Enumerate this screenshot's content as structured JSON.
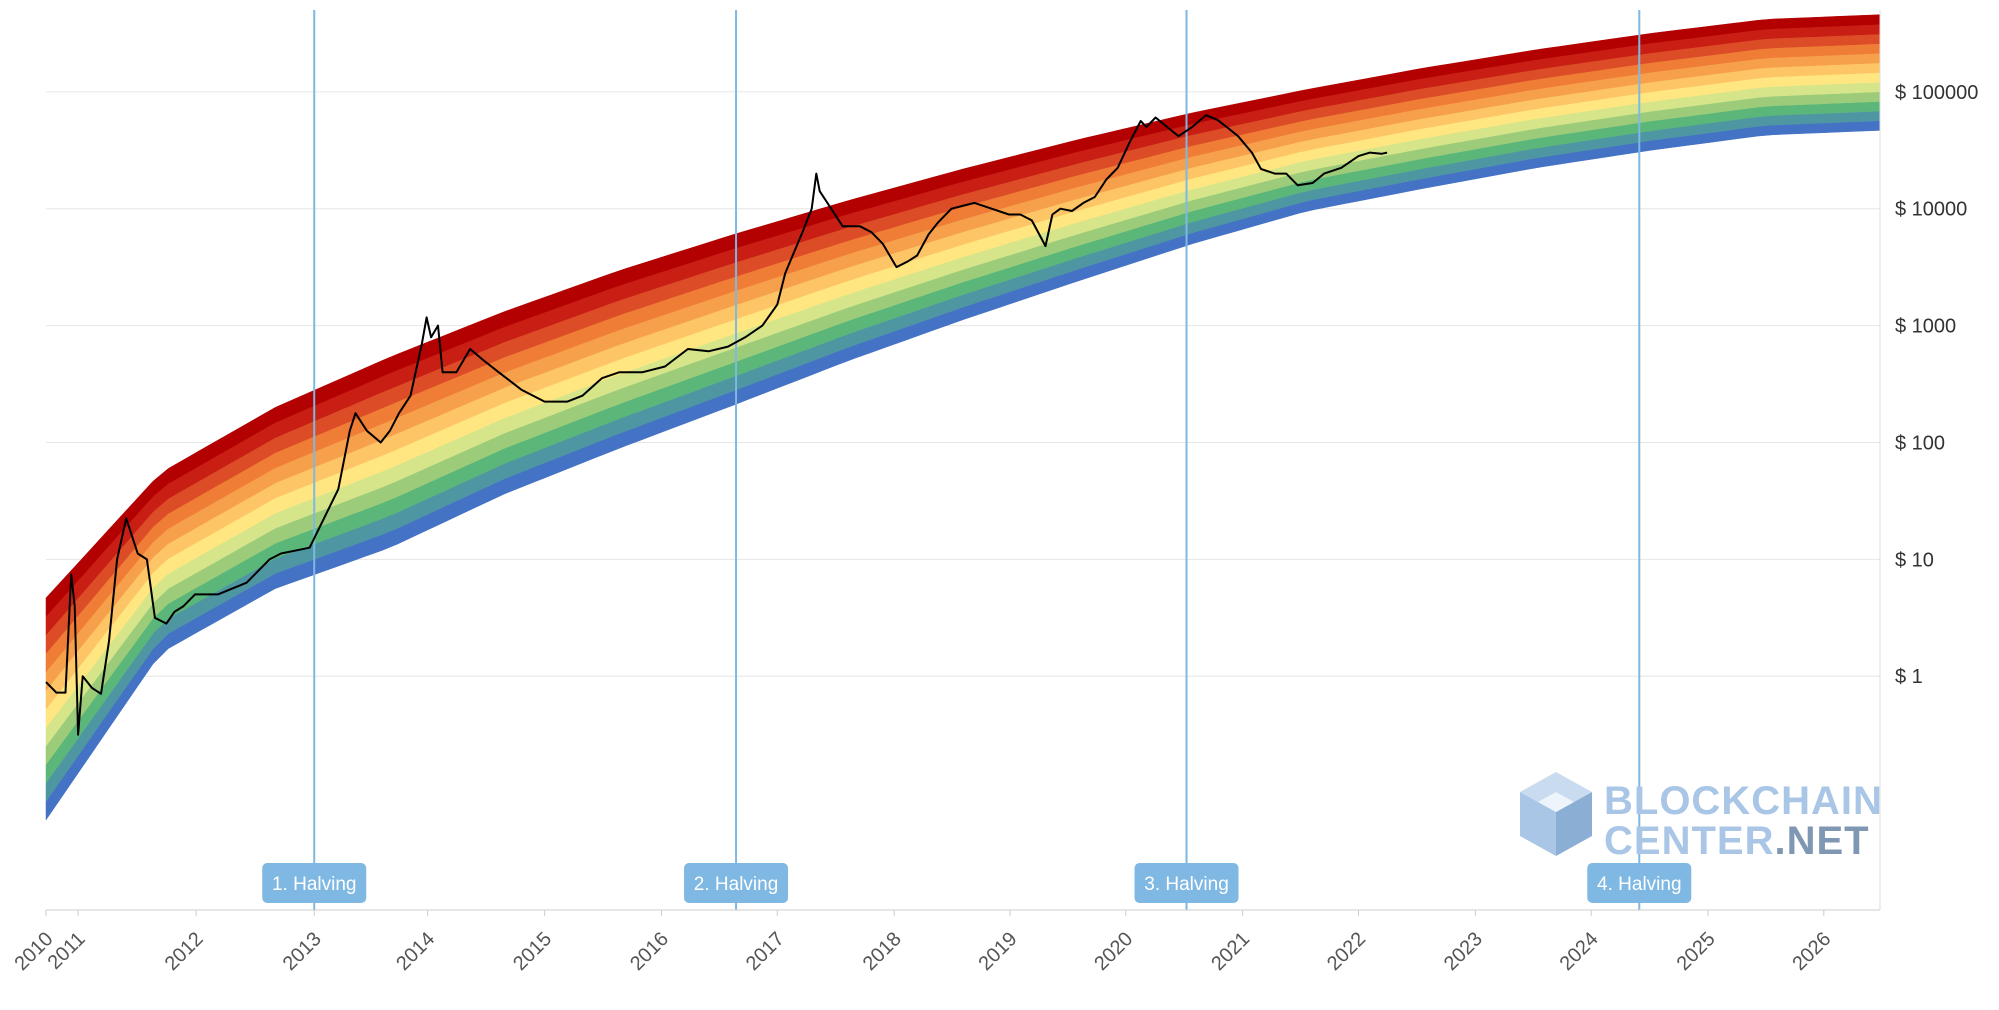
{
  "chart_data": {
    "type": "line",
    "title": "",
    "xlabel": "",
    "ylabel": "",
    "yscale": "log",
    "xlim": [
      2010.0,
      2026.0
    ],
    "ylim_log10": [
      -2.0,
      5.7
    ],
    "grid": true,
    "y_ticks": [
      {
        "value": 100000,
        "label": "$ 100000"
      },
      {
        "value": 10000,
        "label": "$ 10000"
      },
      {
        "value": 1000,
        "label": "$ 1000"
      },
      {
        "value": 100,
        "label": "$ 100"
      },
      {
        "value": 10,
        "label": "$ 10"
      },
      {
        "value": 1,
        "label": "$ 1"
      }
    ],
    "x_ticks": [
      "2010",
      "2011",
      "2012",
      "2013",
      "2014",
      "2015",
      "2016",
      "2017",
      "2018",
      "2019",
      "2020",
      "2021",
      "2022",
      "2023",
      "2024",
      "2025",
      "2026"
    ],
    "x_tick_positions": [
      2010.0,
      2010.28,
      2011.31,
      2012.34,
      2013.33,
      2014.35,
      2015.37,
      2016.38,
      2017.4,
      2018.41,
      2019.42,
      2020.44,
      2021.45,
      2022.47,
      2023.48,
      2024.5,
      2025.51
    ],
    "rainbow_bands": {
      "bottom_curve": [
        [
          2010.0,
          -1.23
        ],
        [
          2011.0,
          0.2
        ],
        [
          2012.0,
          0.75
        ],
        [
          2013.0,
          1.1
        ],
        [
          2014.0,
          1.56
        ],
        [
          2015.0,
          1.95
        ],
        [
          2016.0,
          2.32
        ],
        [
          2017.0,
          2.7
        ],
        [
          2018.0,
          3.05
        ],
        [
          2019.0,
          3.38
        ],
        [
          2020.0,
          3.7
        ],
        [
          2021.0,
          3.98
        ],
        [
          2022.0,
          4.17
        ],
        [
          2023.0,
          4.35
        ],
        [
          2024.0,
          4.5
        ],
        [
          2025.0,
          4.63
        ],
        [
          2026.0,
          4.67
        ]
      ],
      "top_curve": [
        [
          2010.0,
          0.67
        ],
        [
          2011.0,
          1.74
        ],
        [
          2012.0,
          2.3
        ],
        [
          2013.0,
          2.73
        ],
        [
          2014.0,
          3.12
        ],
        [
          2015.0,
          3.47
        ],
        [
          2016.0,
          3.78
        ],
        [
          2017.0,
          4.07
        ],
        [
          2018.0,
          4.34
        ],
        [
          2019.0,
          4.59
        ],
        [
          2020.0,
          4.82
        ],
        [
          2021.0,
          5.02
        ],
        [
          2022.0,
          5.2
        ],
        [
          2023.0,
          5.36
        ],
        [
          2024.0,
          5.5
        ],
        [
          2025.0,
          5.62
        ],
        [
          2026.0,
          5.66
        ]
      ],
      "colors": [
        "#4472c4",
        "#4f96a3",
        "#5bb67a",
        "#9ccc7a",
        "#d6e58a",
        "#ffe680",
        "#fdc565",
        "#f7a04b",
        "#ef7d36",
        "#dc4c27",
        "#c81e14",
        "#b30000"
      ]
    },
    "series": [
      {
        "color": "#000000",
        "points": [
          [
            2010.0,
            -0.05
          ],
          [
            2010.09,
            -0.14
          ],
          [
            2010.17,
            -0.14
          ],
          [
            2010.22,
            0.87
          ],
          [
            2010.25,
            0.6
          ],
          [
            2010.28,
            -0.5
          ],
          [
            2010.32,
            0.0
          ],
          [
            2010.4,
            -0.1
          ],
          [
            2010.48,
            -0.15
          ],
          [
            2010.55,
            0.3
          ],
          [
            2010.62,
            1.0
          ],
          [
            2010.7,
            1.35
          ],
          [
            2010.75,
            1.2
          ],
          [
            2010.8,
            1.05
          ],
          [
            2010.88,
            1.0
          ],
          [
            2010.95,
            0.5
          ],
          [
            2011.05,
            0.45
          ],
          [
            2011.12,
            0.55
          ],
          [
            2011.2,
            0.6
          ],
          [
            2011.3,
            0.7
          ],
          [
            2011.5,
            0.7
          ],
          [
            2011.75,
            0.8
          ],
          [
            2011.95,
            1.0
          ],
          [
            2012.05,
            1.05
          ],
          [
            2012.3,
            1.1
          ],
          [
            2012.55,
            1.6
          ],
          [
            2012.65,
            2.1
          ],
          [
            2012.7,
            2.25
          ],
          [
            2012.8,
            2.1
          ],
          [
            2012.92,
            2.0
          ],
          [
            2013.0,
            2.1
          ],
          [
            2013.08,
            2.25
          ],
          [
            2013.18,
            2.4
          ],
          [
            2013.28,
            2.85
          ],
          [
            2013.32,
            3.07
          ],
          [
            2013.36,
            2.9
          ],
          [
            2013.42,
            3.0
          ],
          [
            2013.46,
            2.6
          ],
          [
            2013.5,
            2.6
          ],
          [
            2013.58,
            2.6
          ],
          [
            2013.7,
            2.8
          ],
          [
            2013.82,
            2.7
          ],
          [
            2013.95,
            2.6
          ],
          [
            2014.15,
            2.45
          ],
          [
            2014.35,
            2.35
          ],
          [
            2014.55,
            2.35
          ],
          [
            2014.68,
            2.4
          ],
          [
            2014.85,
            2.55
          ],
          [
            2015.0,
            2.6
          ],
          [
            2015.2,
            2.6
          ],
          [
            2015.4,
            2.65
          ],
          [
            2015.6,
            2.8
          ],
          [
            2015.78,
            2.78
          ],
          [
            2015.95,
            2.82
          ],
          [
            2016.1,
            2.9
          ],
          [
            2016.25,
            3.0
          ],
          [
            2016.38,
            3.18
          ],
          [
            2016.45,
            3.45
          ],
          [
            2016.6,
            3.8
          ],
          [
            2016.68,
            4.0
          ],
          [
            2016.72,
            4.3
          ],
          [
            2016.75,
            4.15
          ],
          [
            2016.85,
            4.0
          ],
          [
            2016.95,
            3.85
          ],
          [
            2017.1,
            3.85
          ],
          [
            2017.2,
            3.8
          ],
          [
            2017.3,
            3.7
          ],
          [
            2017.42,
            3.5
          ],
          [
            2017.52,
            3.55
          ],
          [
            2017.6,
            3.6
          ],
          [
            2017.7,
            3.78
          ],
          [
            2017.78,
            3.88
          ],
          [
            2017.9,
            4.0
          ],
          [
            2018.1,
            4.05
          ],
          [
            2018.25,
            4.0
          ],
          [
            2018.4,
            3.95
          ],
          [
            2018.5,
            3.95
          ],
          [
            2018.6,
            3.9
          ],
          [
            2018.72,
            3.68
          ],
          [
            2018.78,
            3.95
          ],
          [
            2018.85,
            4.0
          ],
          [
            2018.95,
            3.98
          ],
          [
            2019.05,
            4.05
          ],
          [
            2019.15,
            4.1
          ],
          [
            2019.25,
            4.25
          ],
          [
            2019.35,
            4.35
          ],
          [
            2019.45,
            4.56
          ],
          [
            2019.55,
            4.75
          ],
          [
            2019.6,
            4.7
          ],
          [
            2019.68,
            4.78
          ],
          [
            2019.78,
            4.7
          ],
          [
            2019.88,
            4.62
          ],
          [
            2020.0,
            4.7
          ],
          [
            2020.12,
            4.8
          ],
          [
            2020.22,
            4.76
          ],
          [
            2020.3,
            4.7
          ],
          [
            2020.4,
            4.62
          ],
          [
            2020.52,
            4.48
          ],
          [
            2020.6,
            4.34
          ],
          [
            2020.72,
            4.3
          ],
          [
            2020.82,
            4.3
          ],
          [
            2020.92,
            4.2
          ],
          [
            2021.05,
            4.22
          ],
          [
            2021.15,
            4.3
          ],
          [
            2021.3,
            4.35
          ],
          [
            2021.45,
            4.45
          ],
          [
            2021.55,
            4.48
          ],
          [
            2021.65,
            4.47
          ],
          [
            2021.7,
            4.48
          ]
        ]
      }
    ],
    "annotations": [
      {
        "x": 2012.34,
        "label": "1. Halving"
      },
      {
        "x": 2016.02,
        "label": "2. Halving"
      },
      {
        "x": 2019.95,
        "label": "3. Halving"
      },
      {
        "x": 2023.9,
        "label": "4. Halving"
      }
    ],
    "line_color_halving": "#7fb8e2"
  },
  "watermark": {
    "line1": "BLOCKCHAIN",
    "line2_a": "CENTER",
    "line2_b": ".NET",
    "colors": {
      "light": "#a9c6e6",
      "dark": "#7f97b3"
    }
  }
}
